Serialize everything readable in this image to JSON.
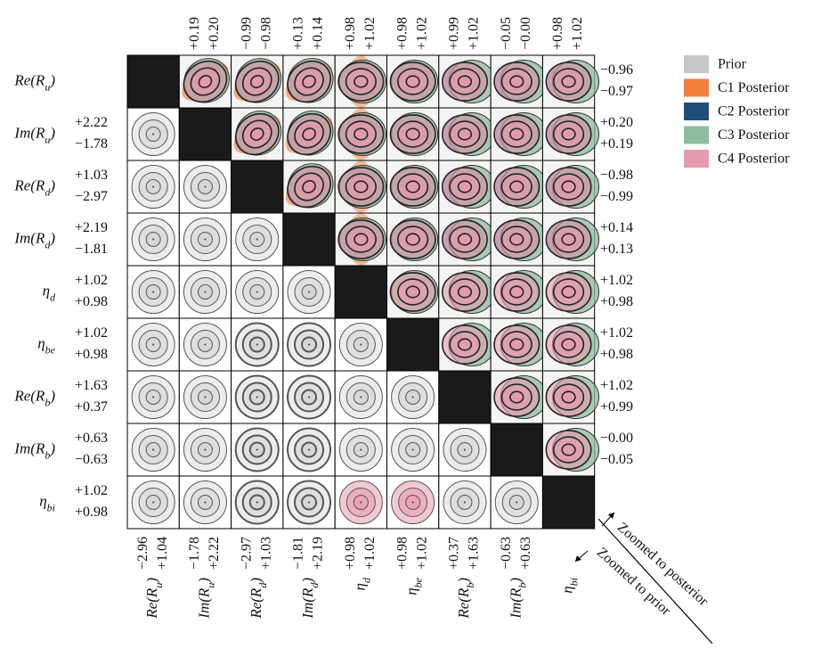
{
  "parameters": [
    {
      "main": "Re(R",
      "sub": "u",
      "close": ")"
    },
    {
      "main": "Im(R",
      "sub": "u",
      "close": ")"
    },
    {
      "main": "Re(R",
      "sub": "d",
      "close": ")"
    },
    {
      "main": "Im(R",
      "sub": "d",
      "close": ")"
    },
    {
      "main": "η",
      "sub": "d"
    },
    {
      "main": "η",
      "sub": "be"
    },
    {
      "main": "Re(R",
      "sub": "b",
      "close": ")"
    },
    {
      "main": "Im(R",
      "sub": "b",
      "close": ")"
    },
    {
      "main": "η",
      "sub": "bi"
    }
  ],
  "left_ticks": [
    [
      "+2.22",
      "−1.78"
    ],
    [
      "+1.03",
      "−2.97"
    ],
    [
      "+2.19",
      "−1.81"
    ],
    [
      "+1.02",
      "+0.98"
    ],
    [
      "+1.02",
      "+0.98"
    ],
    [
      "+1.63",
      "+0.37"
    ],
    [
      "+0.63",
      "−0.63"
    ],
    [
      "+1.02",
      "+0.98"
    ]
  ],
  "right_ticks": [
    [
      "−0.96",
      "−0.97"
    ],
    [
      "+0.20",
      "+0.19"
    ],
    [
      "−0.98",
      "−0.99"
    ],
    [
      "+0.14",
      "+0.13"
    ],
    [
      "+1.02",
      "+0.98"
    ],
    [
      "+1.02",
      "+0.98"
    ],
    [
      "+1.02",
      "+0.99"
    ],
    [
      "−0.00",
      "−0.05"
    ]
  ],
  "top_ticks": [
    [
      "+0.19",
      "+0.20"
    ],
    [
      "−0.99",
      "−0.98"
    ],
    [
      "+0.13",
      "+0.14"
    ],
    [
      "+0.98",
      "+1.02"
    ],
    [
      "+0.98",
      "+1.02"
    ],
    [
      "+0.99",
      "+1.02"
    ],
    [
      "−0.05",
      "−0.00"
    ],
    [
      "+0.98",
      "+1.02"
    ]
  ],
  "bottom_ticks": [
    [
      "−2.96",
      "+1.04"
    ],
    [
      "−1.78",
      "+2.22"
    ],
    [
      "−2.97",
      "+1.03"
    ],
    [
      "−1.81",
      "+2.19"
    ],
    [
      "+0.98",
      "+1.02"
    ],
    [
      "+0.98",
      "+1.02"
    ],
    [
      "+0.37",
      "+1.63"
    ],
    [
      "−0.63",
      "+0.63"
    ]
  ],
  "legend": [
    {
      "name": "Prior",
      "color": "#c8c8c8"
    },
    {
      "name": "C1 Posterior",
      "color": "#f07f3c"
    },
    {
      "name": "C2 Posterior",
      "color": "#1f4e79"
    },
    {
      "name": "C3 Posterior",
      "color": "#8fbc9f"
    },
    {
      "name": "C4 Posterior",
      "color": "#e89aaf"
    }
  ],
  "annotations": {
    "posterior": "Zoomed to posterior",
    "prior": "Zoomed to prior"
  }
}
